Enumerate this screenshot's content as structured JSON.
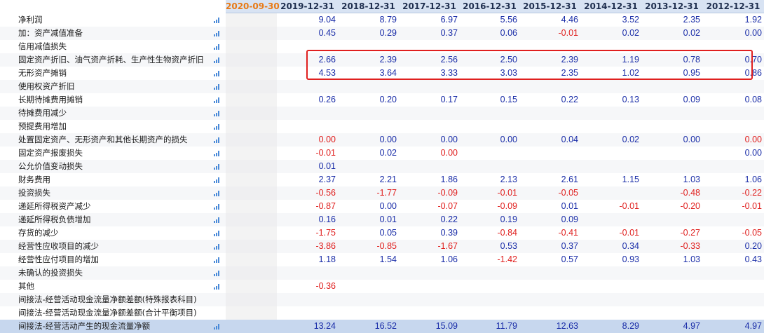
{
  "header": {
    "columns": [
      "2020-09-30",
      "2019-12-31",
      "2018-12-31",
      "2017-12-31",
      "2016-12-31",
      "2015-12-31",
      "2014-12-31",
      "2013-12-31",
      "2012-12-31"
    ],
    "highlight_color": "#e87a16"
  },
  "colors": {
    "positive": "#1a2da8",
    "negative": "#e0201f",
    "highlight_box": "#e0201f",
    "icon": "#4a8ad8"
  },
  "rows": [
    {
      "label": "净利润",
      "chart": true,
      "values": [
        "",
        "9.04",
        "8.79",
        "6.97",
        "5.56",
        "4.46",
        "3.52",
        "2.35",
        "1.92"
      ]
    },
    {
      "label": "加：资产减值准备",
      "chart": true,
      "values": [
        "",
        "0.45",
        "0.29",
        "0.37",
        "0.06",
        "-0.01",
        "0.02",
        "0.02",
        "0.00"
      ]
    },
    {
      "label": "信用减值损失",
      "chart": true,
      "values": [
        "",
        "",
        "",
        "",
        "",
        "",
        "",
        "",
        ""
      ]
    },
    {
      "label": "固定资产折旧、油气资产折耗、生产性生物资产折旧",
      "chart": true,
      "values": [
        "",
        "2.66",
        "2.39",
        "2.56",
        "2.50",
        "2.39",
        "1.19",
        "0.78",
        "0.70"
      ]
    },
    {
      "label": "无形资产摊销",
      "chart": true,
      "values": [
        "",
        "4.53",
        "3.64",
        "3.33",
        "3.03",
        "2.35",
        "1.02",
        "0.95",
        "0.86"
      ]
    },
    {
      "label": "使用权资产折旧",
      "chart": true,
      "values": [
        "",
        "",
        "",
        "",
        "",
        "",
        "",
        "",
        ""
      ]
    },
    {
      "label": "长期待摊费用摊销",
      "chart": true,
      "values": [
        "",
        "0.26",
        "0.20",
        "0.17",
        "0.15",
        "0.22",
        "0.13",
        "0.09",
        "0.08"
      ]
    },
    {
      "label": "待摊费用减少",
      "chart": true,
      "values": [
        "",
        "",
        "",
        "",
        "",
        "",
        "",
        "",
        ""
      ]
    },
    {
      "label": "预提费用增加",
      "chart": true,
      "values": [
        "",
        "",
        "",
        "",
        "",
        "",
        "",
        "",
        ""
      ]
    },
    {
      "label": "处置固定资产、无形资产和其他长期资产的损失",
      "chart": true,
      "values": [
        "",
        "0.00",
        "0.00",
        "0.00",
        "0.00",
        "0.04",
        "0.02",
        "0.00",
        "0.00"
      ],
      "red_zero_cols": [
        1,
        8
      ]
    },
    {
      "label": "固定资产报废损失",
      "chart": true,
      "values": [
        "",
        "-0.01",
        "0.02",
        "0.00",
        "",
        "",
        "",
        "",
        "0.00"
      ],
      "red_zero_cols": [
        3
      ]
    },
    {
      "label": "公允价值变动损失",
      "chart": true,
      "values": [
        "",
        "0.01",
        "",
        "",
        "",
        "",
        "",
        "",
        ""
      ]
    },
    {
      "label": "财务费用",
      "chart": true,
      "values": [
        "",
        "2.37",
        "2.21",
        "1.86",
        "2.13",
        "2.61",
        "1.15",
        "1.03",
        "1.06"
      ]
    },
    {
      "label": "投资损失",
      "chart": true,
      "values": [
        "",
        "-0.56",
        "-1.77",
        "-0.09",
        "-0.01",
        "-0.05",
        "",
        "-0.48",
        "-0.22"
      ]
    },
    {
      "label": "递延所得税资产减少",
      "chart": true,
      "values": [
        "",
        "-0.87",
        "0.00",
        "-0.07",
        "-0.09",
        "0.01",
        "-0.01",
        "-0.20",
        "-0.01"
      ]
    },
    {
      "label": "递延所得税负债增加",
      "chart": true,
      "values": [
        "",
        "0.16",
        "0.01",
        "0.22",
        "0.19",
        "0.09",
        "",
        "",
        ""
      ]
    },
    {
      "label": "存货的减少",
      "chart": true,
      "values": [
        "",
        "-1.75",
        "0.05",
        "0.39",
        "-0.84",
        "-0.41",
        "-0.01",
        "-0.27",
        "-0.05"
      ]
    },
    {
      "label": "经营性应收项目的减少",
      "chart": true,
      "values": [
        "",
        "-3.86",
        "-0.85",
        "-1.67",
        "0.53",
        "0.37",
        "0.34",
        "-0.33",
        "0.20"
      ]
    },
    {
      "label": "经营性应付项目的增加",
      "chart": true,
      "values": [
        "",
        "1.18",
        "1.54",
        "1.06",
        "-1.42",
        "0.57",
        "0.93",
        "1.03",
        "0.43"
      ]
    },
    {
      "label": "未确认的投资损失",
      "chart": true,
      "values": [
        "",
        "",
        "",
        "",
        "",
        "",
        "",
        "",
        ""
      ]
    },
    {
      "label": "其他",
      "chart": true,
      "values": [
        "",
        "-0.36",
        "",
        "",
        "",
        "",
        "",
        "",
        ""
      ]
    },
    {
      "label": "间接法-经营活动现金流量净额差额(特殊报表科目)",
      "chart": false,
      "values": [
        "",
        "",
        "",
        "",
        "",
        "",
        "",
        "",
        ""
      ]
    },
    {
      "label": "间接法-经营活动现金流量净额差额(合计平衡项目)",
      "chart": false,
      "values": [
        "",
        "",
        "",
        "",
        "",
        "",
        "",
        "",
        ""
      ]
    },
    {
      "label": "间接法-经营活动产生的现金流量净额",
      "chart": true,
      "total": true,
      "values": [
        "",
        "13.24",
        "16.52",
        "15.09",
        "11.79",
        "12.63",
        "8.29",
        "4.97",
        "4.97"
      ]
    }
  ]
}
